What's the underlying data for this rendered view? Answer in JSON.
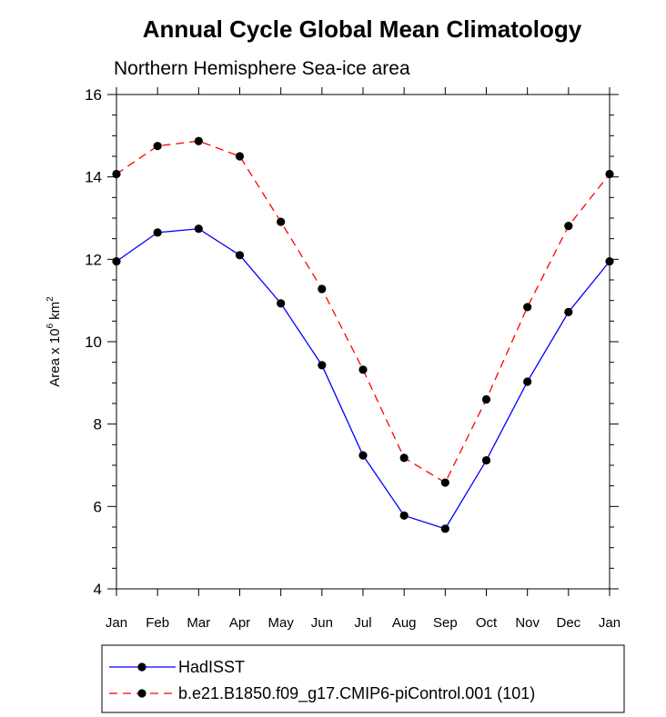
{
  "chart_data": {
    "type": "line",
    "title": "Annual Cycle Global Mean Climatology",
    "subtitle": "Northern Hemisphere Sea-ice area",
    "ylabel": "Area x 10",
    "ylabel_exponent": "6",
    "ylabel_unit": "km",
    "ylabel_unit_exponent": "2",
    "xlabel": "",
    "ylim": [
      4,
      16
    ],
    "yticks": [
      4,
      6,
      8,
      10,
      12,
      14,
      16
    ],
    "categories": [
      "Jan",
      "Feb",
      "Mar",
      "Apr",
      "May",
      "Jun",
      "Jul",
      "Aug",
      "Sep",
      "Oct",
      "Nov",
      "Dec",
      "Jan"
    ],
    "series": [
      {
        "name": "HadISST",
        "color": "#0000ff",
        "dash": "solid",
        "values": [
          11.95,
          12.65,
          12.74,
          12.1,
          10.93,
          9.43,
          7.24,
          5.78,
          5.46,
          7.12,
          9.03,
          10.72,
          11.95
        ]
      },
      {
        "name": "b.e21.B1850.f09_g17.CMIP6-piControl.001 (101)",
        "color": "#ff0000",
        "dash": "dashed",
        "values": [
          14.07,
          14.75,
          14.87,
          14.5,
          12.91,
          11.28,
          9.32,
          7.18,
          6.58,
          8.6,
          10.84,
          12.81,
          14.07
        ]
      }
    ],
    "legend_position": "bottom"
  }
}
